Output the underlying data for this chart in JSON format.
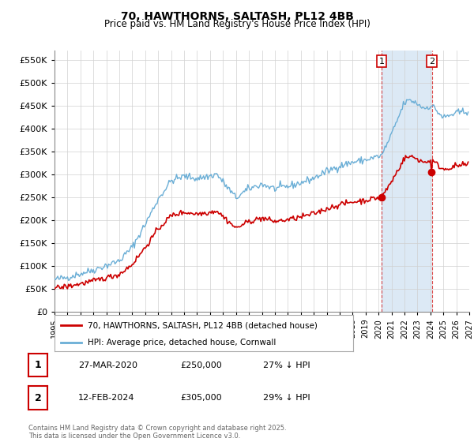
{
  "title": "70, HAWTHORNS, SALTASH, PL12 4BB",
  "subtitle": "Price paid vs. HM Land Registry's House Price Index (HPI)",
  "ylim": [
    0,
    570000
  ],
  "yticks": [
    0,
    50000,
    100000,
    150000,
    200000,
    250000,
    300000,
    350000,
    400000,
    450000,
    500000,
    550000
  ],
  "xlim_start": 1995.0,
  "xlim_end": 2027.0,
  "hpi_color": "#6aaed6",
  "price_color": "#cc0000",
  "purchase1_x": 2020.23,
  "purchase1_y": 250000,
  "purchase1_label": "1",
  "purchase2_x": 2024.12,
  "purchase2_y": 305000,
  "purchase2_label": "2",
  "legend_line1": "70, HAWTHORNS, SALTASH, PL12 4BB (detached house)",
  "legend_line2": "HPI: Average price, detached house, Cornwall",
  "table_row1": [
    "1",
    "27-MAR-2020",
    "£250,000",
    "27% ↓ HPI"
  ],
  "table_row2": [
    "2",
    "12-FEB-2024",
    "£305,000",
    "29% ↓ HPI"
  ],
  "footnote": "Contains HM Land Registry data © Crown copyright and database right 2025.\nThis data is licensed under the Open Government Licence v3.0.",
  "span_color": "#dce9f5",
  "hatch_color": "#d0d8e0"
}
